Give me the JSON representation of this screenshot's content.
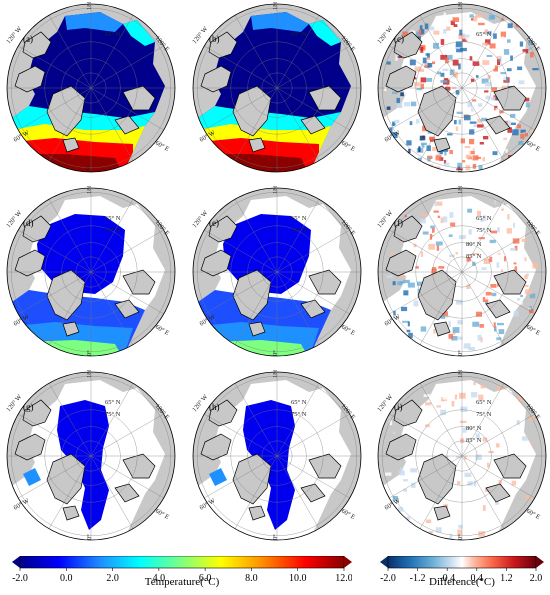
{
  "panels": [
    {
      "id": "a",
      "label": "(a)",
      "kind": "temp",
      "level": 0
    },
    {
      "id": "b",
      "label": "(b)",
      "kind": "temp",
      "level": 0
    },
    {
      "id": "c",
      "label": "(c)",
      "kind": "diff",
      "level": 0
    },
    {
      "id": "d",
      "label": "(d)",
      "kind": "temp",
      "level": 1
    },
    {
      "id": "e",
      "label": "(e)",
      "kind": "temp",
      "level": 1
    },
    {
      "id": "f",
      "label": "(f)",
      "kind": "diff",
      "level": 1
    },
    {
      "id": "g",
      "label": "(g)",
      "kind": "temp",
      "level": 2
    },
    {
      "id": "h",
      "label": "(h)",
      "kind": "temp",
      "level": 2
    },
    {
      "id": "i",
      "label": "(i)",
      "kind": "diff",
      "level": 2
    }
  ],
  "grid_labels": {
    "lon_top": "180°",
    "lon_left_upper": "120° W",
    "lon_right_upper": "120° E",
    "lon_left_lower": "60° W",
    "lon_right_lower": "60° E",
    "lon_bottom": "0°",
    "lat_1": "65° N",
    "lat_2": "75° N",
    "lat_3": "80° N",
    "lat_4": "85° N"
  },
  "colorbars": {
    "temperature": {
      "title": "Temperature(°C)",
      "ticks": [
        "-2.0",
        "0.0",
        "2.0",
        "4.0",
        "6.0",
        "8.0",
        "10.0",
        "12.0"
      ],
      "range": [
        -2.0,
        12.0
      ],
      "colors": [
        "#00008b",
        "#0000ff",
        "#1e90ff",
        "#00ffff",
        "#7fff7f",
        "#ffff00",
        "#ff8c00",
        "#ff0000",
        "#8b0000"
      ]
    },
    "difference": {
      "title": "Difference(°C)",
      "ticks": [
        "-2.0",
        "-1.2",
        "-0.4",
        "0.4",
        "1.2",
        "2.0"
      ],
      "range": [
        -2.0,
        2.0
      ],
      "colors": [
        "#08306b",
        "#2171b5",
        "#6baed6",
        "#c6dbef",
        "#ffffff",
        "#fcbba1",
        "#fb6a4a",
        "#cb181d",
        "#67000d"
      ]
    }
  },
  "colors": {
    "land": "#c8c8c8",
    "ice_free_white": "#ffffff",
    "deep_blue": "#00008b",
    "coast": "#000000"
  }
}
